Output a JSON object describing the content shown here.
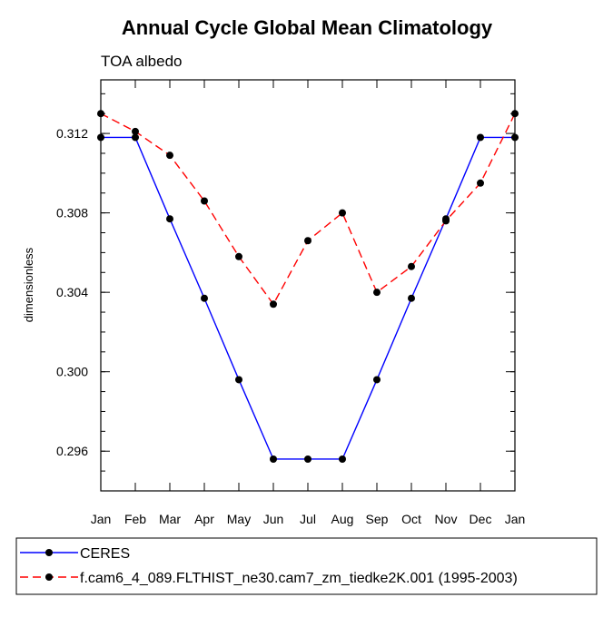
{
  "chart_data": {
    "type": "line",
    "title": "Annual Cycle Global Mean Climatology",
    "subtitle": "TOA albedo",
    "xlabel": "",
    "ylabel": "dimensionless",
    "categories": [
      "Jan",
      "Feb",
      "Mar",
      "Apr",
      "May",
      "Jun",
      "Jul",
      "Aug",
      "Sep",
      "Oct",
      "Nov",
      "Dec",
      "Jan"
    ],
    "ylim": [
      0.294,
      0.3147
    ],
    "yticks": [
      0.296,
      0.3,
      0.304,
      0.308,
      0.312
    ],
    "ytick_labels": [
      "0.296",
      "0.300",
      "0.304",
      "0.308",
      "0.312"
    ],
    "series": [
      {
        "name": "CERES",
        "color": "#0000ff",
        "style": "solid",
        "marker": "circle",
        "values": [
          0.3118,
          0.3118,
          0.3077,
          0.3037,
          0.2996,
          0.2956,
          0.2956,
          0.2956,
          0.2996,
          0.3037,
          0.3077,
          0.3118,
          0.3118
        ]
      },
      {
        "name": "f.cam6_4_089.FLTHIST_ne30.cam7_zm_tiedke2K.001 (1995-2003)",
        "color": "#ff0000",
        "style": "dashed",
        "marker": "circle",
        "values": [
          0.313,
          0.3121,
          0.3109,
          0.3086,
          0.3058,
          0.3034,
          0.3066,
          0.308,
          0.304,
          0.3053,
          0.3076,
          0.3095,
          0.313
        ]
      }
    ],
    "legend_position": "bottom",
    "grid": false
  }
}
